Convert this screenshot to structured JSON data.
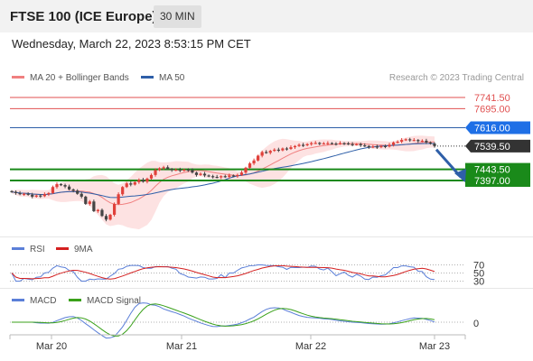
{
  "header": {
    "title": "FTSE 100 (ICE Europe)",
    "interval": "30 MIN"
  },
  "datetime": "Wednesday, March 22, 2023 8:53:15 PM CET",
  "legend": {
    "ma20": "MA 20 + Bollinger Bands",
    "ma50": "MA 50",
    "credit": "Research © 2023 Trading Central",
    "rsi": "RSI",
    "rsi_ma": "9MA",
    "macd": "MACD",
    "macd_signal": "MACD Signal"
  },
  "colors": {
    "candle_up": "#e0403a",
    "candle_down": "#444444",
    "ma20": "#f08080",
    "ma50": "#2e5fa8",
    "band_fill": "#fde2e2",
    "resistance": "#e05050",
    "pivot": "#2e5fa8",
    "support": "#1a8a1a",
    "arrow": "#2e5fa8",
    "rsi": "#5b7fd8",
    "rsi_ma": "#d42020",
    "macd": "#5b7fd8",
    "macd_signal": "#3aa11a",
    "tag_blue": "#1e6fe6",
    "tag_dark": "#333333",
    "tag_green": "#1a8a1a"
  },
  "chart_data": {
    "type": "candlestick",
    "x_labels": [
      "Mar 20",
      "Mar 21",
      "Mar 22",
      "Mar 23"
    ],
    "ylim": [
      7180,
      7790
    ],
    "levels": [
      {
        "value": 7741.5,
        "label": "7741.50",
        "kind": "resistance"
      },
      {
        "value": 7695.0,
        "label": "7695.00",
        "kind": "resistance"
      },
      {
        "value": 7616.0,
        "label": "7616.00",
        "kind": "pivot"
      },
      {
        "value": 7539.5,
        "label": "7539.50",
        "kind": "last"
      },
      {
        "value": 7443.5,
        "label": "7443.50",
        "kind": "support"
      },
      {
        "value": 7397.0,
        "label": "7397.00",
        "kind": "support"
      }
    ],
    "close_path": [
      7350,
      7345,
      7340,
      7342,
      7338,
      7330,
      7335,
      7332,
      7340,
      7345,
      7370,
      7382,
      7378,
      7372,
      7360,
      7355,
      7342,
      7330,
      7300,
      7310,
      7270,
      7275,
      7250,
      7235,
      7255,
      7300,
      7340,
      7370,
      7385,
      7380,
      7390,
      7400,
      7392,
      7405,
      7420,
      7440,
      7448,
      7452,
      7445,
      7440,
      7442,
      7438,
      7442,
      7440,
      7430,
      7420,
      7425,
      7418,
      7415,
      7412,
      7410,
      7415,
      7412,
      7418,
      7415,
      7420,
      7430,
      7450,
      7468,
      7480,
      7500,
      7515,
      7512,
      7520,
      7525,
      7522,
      7530,
      7528,
      7535,
      7540,
      7545,
      7543,
      7548,
      7552,
      7553,
      7550,
      7551,
      7552,
      7550,
      7549,
      7552,
      7551,
      7548,
      7546,
      7548,
      7543,
      7540,
      7535,
      7538,
      7535,
      7540,
      7538,
      7545,
      7555,
      7558,
      7565,
      7568,
      7564,
      7565,
      7560,
      7562,
      7555,
      7550,
      7540
    ],
    "rsi": {
      "ticks": [
        70,
        50,
        30
      ],
      "ylim": [
        20,
        80
      ]
    },
    "macd": {
      "ticks": [
        0
      ]
    }
  }
}
